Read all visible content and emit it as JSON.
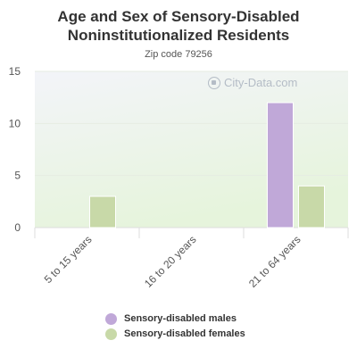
{
  "title": "Age and Sex of Sensory-Disabled Noninstitutionalized Residents",
  "subtitle": "Zip code 79256",
  "watermark": "City-Data.com",
  "colors": {
    "males": "#c0a8d8",
    "females": "#c8d9a8",
    "plot_bg_top": "#f3f4f9",
    "plot_bg_bottom": "#e6f4dc"
  },
  "chart_data": {
    "type": "bar",
    "title": "Age and Sex of Sensory-Disabled Noninstitutionalized Residents",
    "subtitle": "Zip code 79256",
    "categories": [
      "5 to 15 years",
      "16 to 20 years",
      "21 to 64 years"
    ],
    "series": [
      {
        "name": "Sensory-disabled males",
        "values": [
          0,
          0,
          12
        ]
      },
      {
        "name": "Sensory-disabled females",
        "values": [
          3,
          0,
          4
        ]
      }
    ],
    "ylim": [
      0,
      15
    ],
    "yticks": [
      0,
      5,
      10,
      15
    ],
    "grid": true,
    "legend": "bottom"
  }
}
